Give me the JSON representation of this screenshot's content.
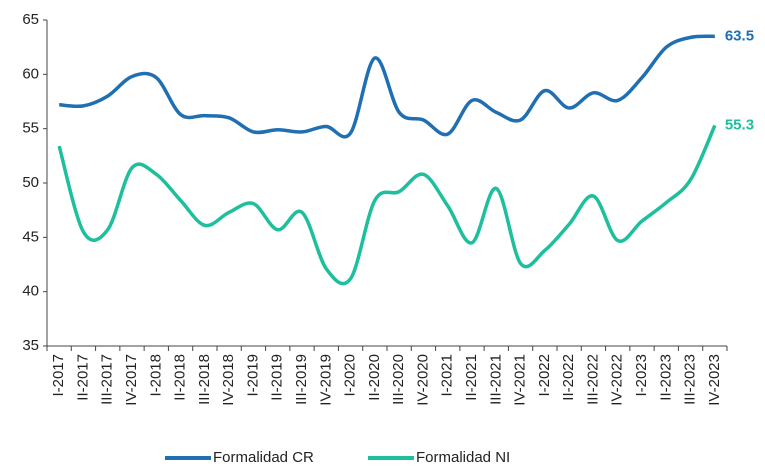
{
  "chart_data": {
    "type": "line",
    "categories": [
      "I-2017",
      "II-2017",
      "III-2017",
      "IV-2017",
      "I-2018",
      "II-2018",
      "III-2018",
      "IV-2018",
      "I-2019",
      "II-2019",
      "III-2019",
      "IV-2019",
      "I-2020",
      "II-2020",
      "III-2020",
      "IV-2020",
      "I-2021",
      "II-2021",
      "III-2021",
      "IV-2021",
      "I-2022",
      "II-2022",
      "III-2022",
      "IV-2022",
      "I-2023",
      "II-2023",
      "III-2023",
      "IV-2023"
    ],
    "series": [
      {
        "name": "Formalidad CR",
        "color": "#1f6fb2",
        "values": [
          57.2,
          57.1,
          58.0,
          59.8,
          59.7,
          56.3,
          56.2,
          56.0,
          54.7,
          54.9,
          54.7,
          55.2,
          54.6,
          61.5,
          56.5,
          55.8,
          54.5,
          57.6,
          56.5,
          55.8,
          58.5,
          56.9,
          58.3,
          57.6,
          59.7,
          62.5,
          63.4,
          63.5
        ]
      },
      {
        "name": "Formalidad NI",
        "color": "#1dbf9c",
        "values": [
          53.4,
          45.5,
          45.7,
          51.4,
          50.8,
          48.4,
          46.1,
          47.3,
          48.1,
          45.7,
          47.3,
          42.1,
          41.2,
          48.4,
          49.2,
          50.8,
          47.9,
          44.5,
          49.5,
          42.6,
          43.8,
          46.2,
          48.8,
          44.7,
          46.5,
          48.2,
          50.3,
          55.3
        ]
      }
    ],
    "ylim": [
      35,
      65
    ],
    "yticks": [
      35,
      40,
      45,
      50,
      55,
      60,
      65
    ],
    "grid": false,
    "legend": "bottom"
  }
}
